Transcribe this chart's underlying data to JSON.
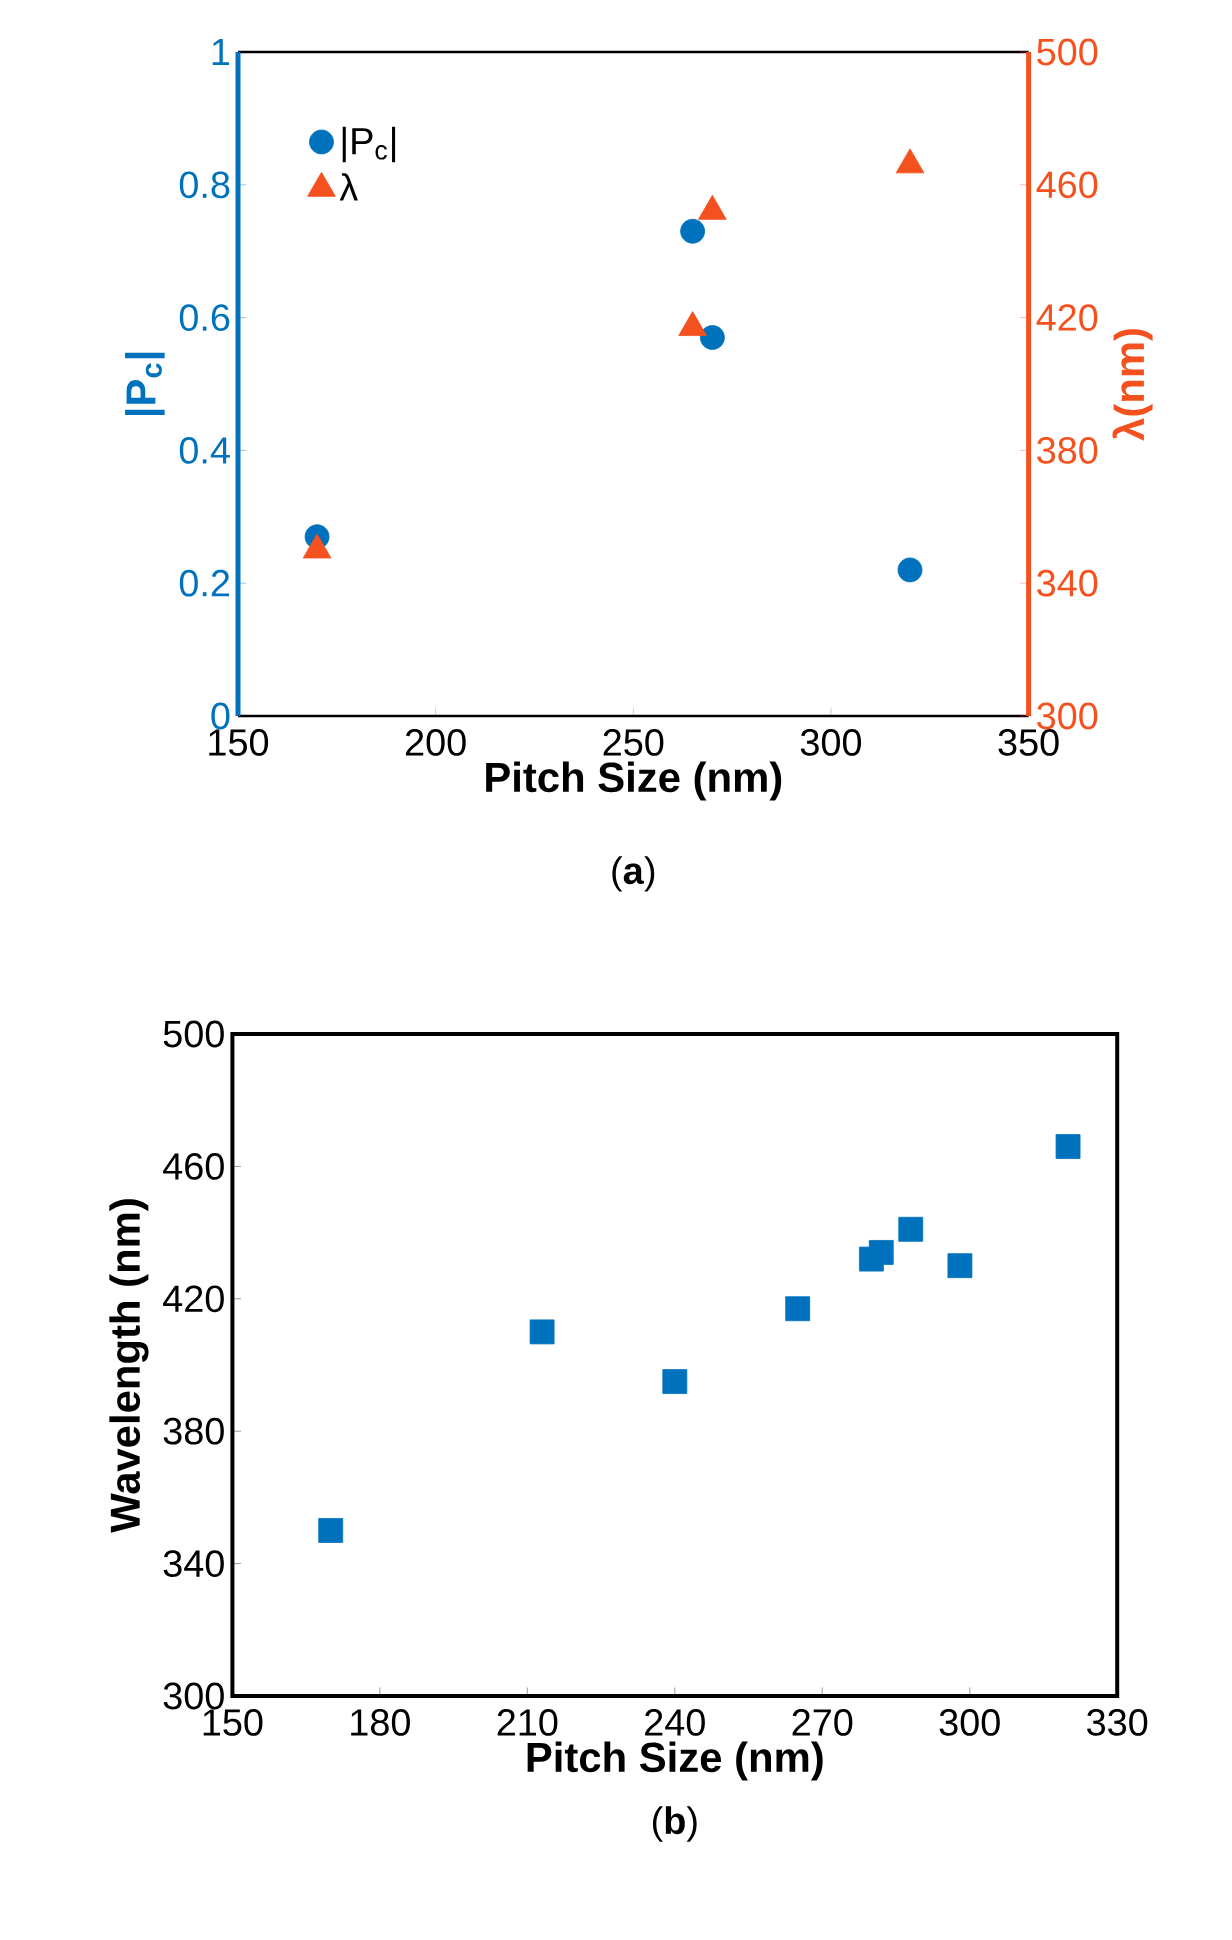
{
  "chart_data": [
    {
      "type": "scatter",
      "xlabel": "Pitch Size (nm)",
      "ylabel": "|P$_{c}$|",
      "y2label": "λ(nm)",
      "xlim": [
        150,
        350
      ],
      "xticks": [
        150,
        200,
        250,
        300,
        350
      ],
      "ylim": [
        0,
        1
      ],
      "yticks": [
        0,
        0.2,
        0.4,
        0.6,
        0.8,
        1
      ],
      "y2lim": [
        300,
        500
      ],
      "y2ticks": [
        300,
        340,
        380,
        420,
        460,
        500
      ],
      "legend": "top left",
      "grid": false,
      "annotations": [
        "(**a**)"
      ],
      "series": [
        {
          "name": "|P$_{c}$|",
          "color": "#0072bd",
          "marker": "circle",
          "x": [
            170,
            265,
            270,
            320
          ],
          "values": [
            0.27,
            0.73,
            0.57,
            0.22
          ]
        },
        {
          "name": "λ",
          "color": "#f4511e",
          "marker": "triangle",
          "axis": "y2",
          "x": [
            170,
            265,
            270,
            320
          ],
          "values": [
            350,
            417,
            452,
            466
          ]
        }
      ]
    },
    {
      "type": "scatter",
      "xlabel": "Pitch Size (nm)",
      "ylabel": "Wavelength (nm)",
      "xlim": [
        150,
        330
      ],
      "xticks": [
        150,
        180,
        210,
        240,
        270,
        300,
        330
      ],
      "ylim": [
        300,
        500
      ],
      "yticks": [
        300,
        340,
        380,
        420,
        460,
        500
      ],
      "grid": false,
      "annotations": [
        "(**b**)"
      ],
      "series": [
        {
          "color": "#0072bd",
          "marker": "square",
          "x": [
            170,
            213,
            240,
            265,
            280,
            282,
            288,
            298,
            320
          ],
          "values": [
            350,
            410,
            395,
            417,
            432,
            434,
            441,
            430,
            466
          ]
        }
      ]
    }
  ]
}
